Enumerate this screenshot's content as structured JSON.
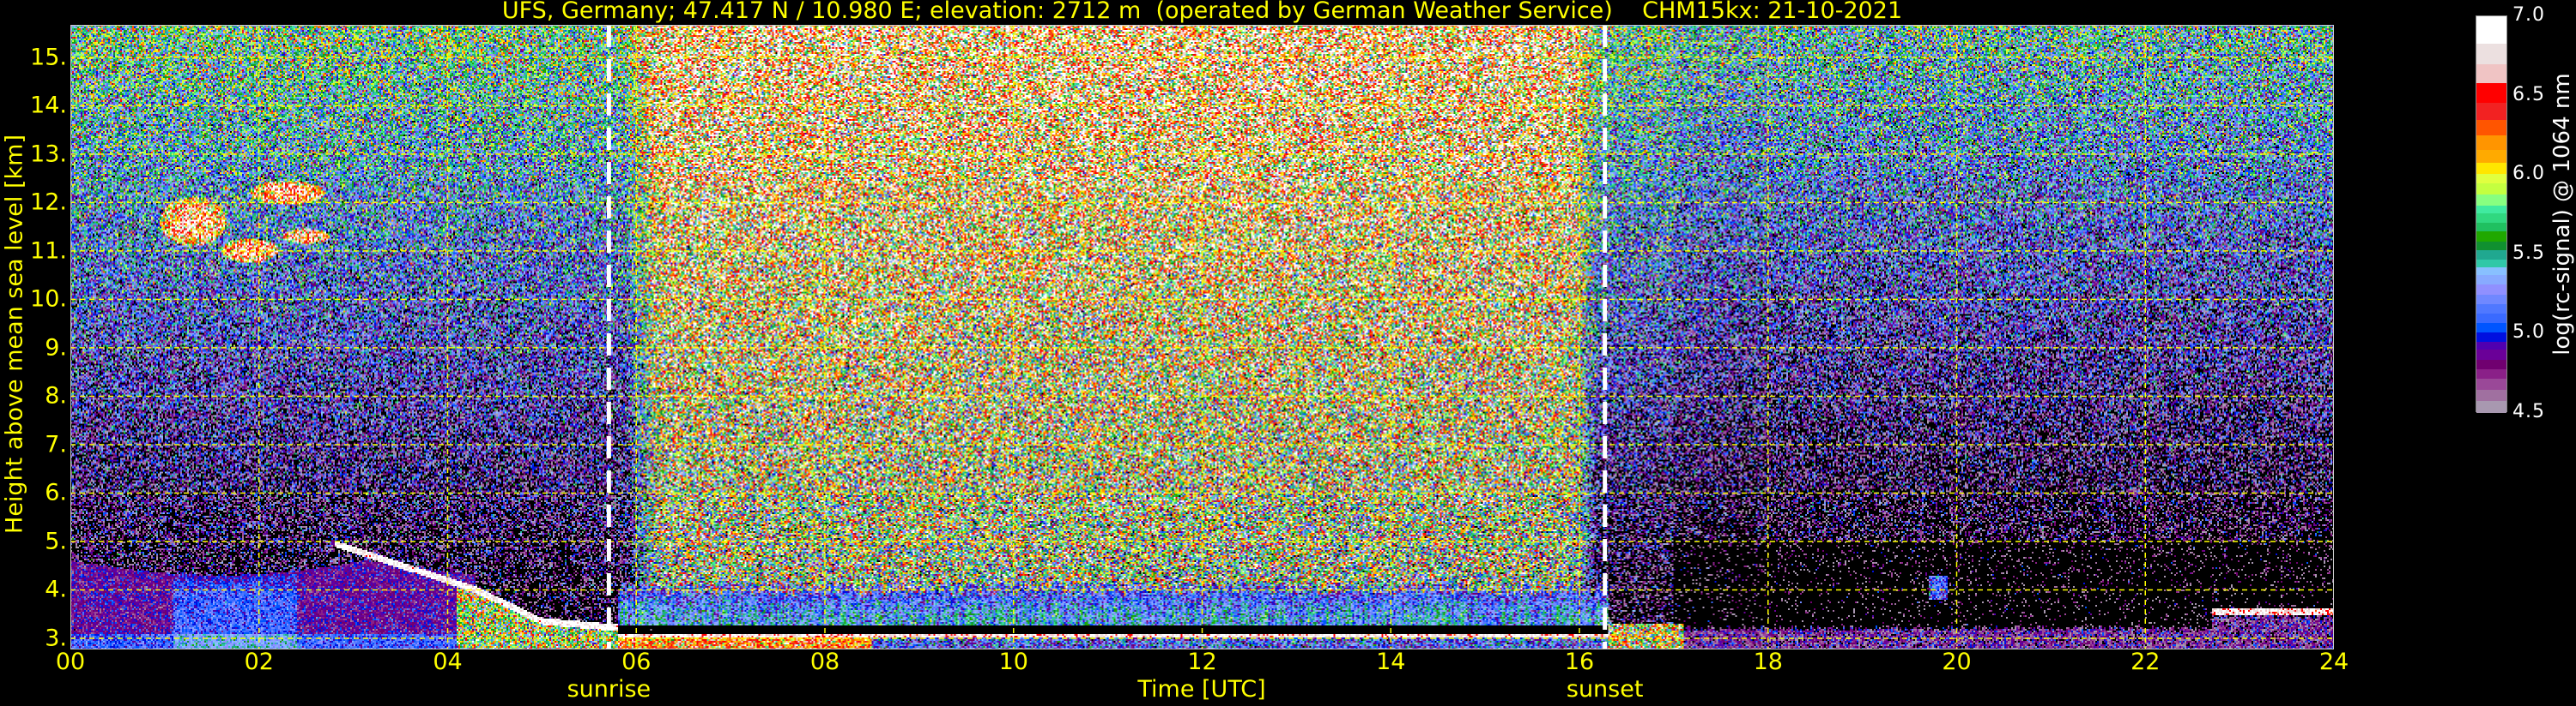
{
  "chart_data": {
    "type": "heatmap",
    "title": "UFS, Germany; 47.417 N / 10.980 E; elevation: 2712 m  (operated by German Weather Service)    CHM15kx: 21-10-2021",
    "xlabel": "Time [UTC]",
    "ylabel": "Height above mean sea level [km]",
    "xlim": [
      0,
      24
    ],
    "ylim": [
      2.77,
      15.67
    ],
    "x_ticks": [
      0,
      2,
      4,
      6,
      8,
      10,
      12,
      14,
      16,
      18,
      20,
      22,
      24
    ],
    "x_tick_labels": [
      "00",
      "02",
      "04",
      "06",
      "08",
      "10",
      "12",
      "14",
      "16",
      "18",
      "20",
      "22",
      "24"
    ],
    "y_ticks": [
      3,
      4,
      5,
      6,
      7,
      8,
      9,
      10,
      11,
      12,
      13,
      14,
      15
    ],
    "y_tick_labels": [
      "3.",
      "4.",
      "5.",
      "6.",
      "7.",
      "8.",
      "9.",
      "10.",
      "11.",
      "12.",
      "13.",
      "14.",
      "15."
    ],
    "grid": true,
    "grid_color": "#ffff00",
    "annotations": [
      {
        "label": "sunrise",
        "x": 5.71,
        "line_color": "#ffffff"
      },
      {
        "label": "sunset",
        "x": 16.27,
        "line_color": "#ffffff"
      }
    ],
    "colorbar": {
      "label": "log(rc-signal) @ 1064 nm",
      "range": [
        4.5,
        7.0
      ],
      "ticks": [
        4.5,
        5.0,
        5.5,
        6.0,
        6.5,
        7.0
      ],
      "tick_labels": [
        "4.5",
        "5.0",
        "5.5",
        "6.0",
        "6.5",
        "7.0"
      ],
      "boundaries": [
        4.5,
        4.58,
        4.65,
        4.72,
        4.78,
        4.84,
        4.9,
        4.95,
        5.01,
        5.07,
        5.13,
        5.19,
        5.25,
        5.31,
        5.37,
        5.42,
        5.47,
        5.53,
        5.58,
        5.65,
        5.7,
        5.76,
        5.81,
        5.88,
        5.95,
        6.01,
        6.08,
        6.16,
        6.25,
        6.35,
        6.46,
        6.58,
        6.7,
        6.83,
        7.0
      ],
      "colors": [
        "#a898b0",
        "#a070a0",
        "#9a4898",
        "#8a2088",
        "#700070",
        "#6a0098",
        "#5000b0",
        "#0010e0",
        "#0055ff",
        "#3a6aff",
        "#5078ff",
        "#7088ff",
        "#9090ff",
        "#88aaff",
        "#88c0ff",
        "#30c8a8",
        "#20a890",
        "#109030",
        "#20a800",
        "#20c060",
        "#30d880",
        "#40eaa0",
        "#88ff80",
        "#c4ff40",
        "#e0ff40",
        "#ffe600",
        "#ffaa00",
        "#ff9500",
        "#ff5500",
        "#f22222",
        "#ff0000",
        "#f0c4c4",
        "#ece0e0",
        "#ffffff"
      ]
    }
  }
}
